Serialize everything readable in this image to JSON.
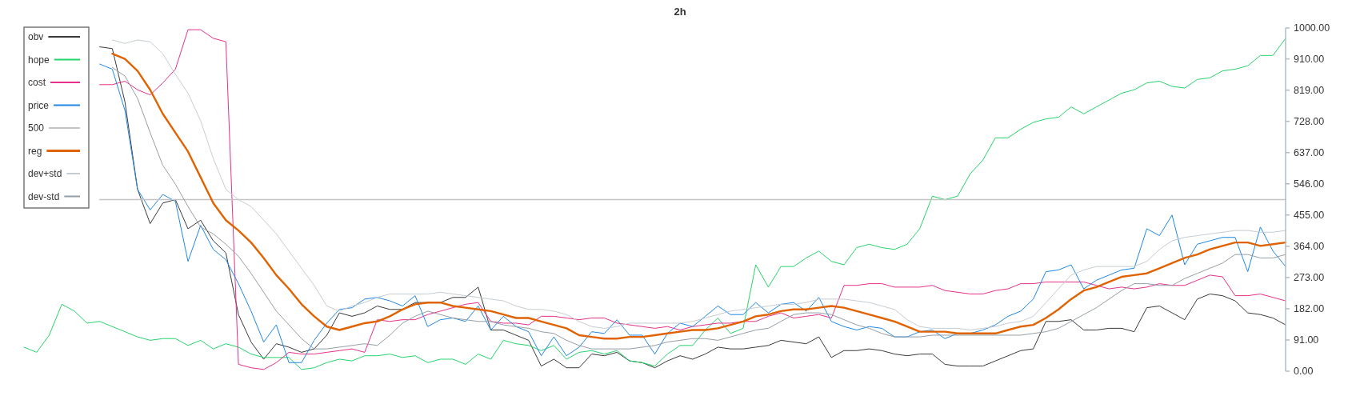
{
  "chart_data": {
    "type": "line",
    "title": "2h",
    "categories": [
      null,
      null,
      null,
      null,
      null,
      null,
      null,
      null,
      null,
      null,
      null,
      null,
      null,
      null,
      null,
      null,
      null,
      null,
      null,
      null,
      null,
      null,
      null,
      null,
      null,
      null,
      null,
      null,
      null,
      null,
      null,
      null,
      null,
      null,
      null,
      null,
      null,
      null,
      null,
      null,
      null,
      null,
      null,
      null,
      null,
      null,
      null,
      null,
      null,
      null,
      null,
      null,
      null,
      null,
      null,
      null,
      null,
      null,
      null,
      null,
      null,
      null,
      null,
      null,
      null,
      null,
      null,
      null,
      null,
      null,
      null,
      null,
      null,
      null,
      null,
      null,
      null,
      null,
      null,
      null,
      null,
      null,
      null,
      null,
      null,
      null,
      null,
      null,
      null,
      null,
      null,
      null,
      null,
      null,
      null,
      null,
      null,
      null,
      null,
      null,
      null
    ],
    "ylim": [
      0,
      1000
    ],
    "yticks": [
      {
        "value": 0,
        "label": "0.00"
      },
      {
        "value": 91,
        "label": "91.00"
      },
      {
        "value": 182,
        "label": "182.00"
      },
      {
        "value": 273,
        "label": "273.00"
      },
      {
        "value": 364,
        "label": "364.00"
      },
      {
        "value": 455,
        "label": "455.00"
      },
      {
        "value": 546,
        "label": "546.00"
      },
      {
        "value": 637,
        "label": "637.00"
      },
      {
        "value": 728,
        "label": "728.00"
      },
      {
        "value": 819,
        "label": "819.00"
      },
      {
        "value": 910,
        "label": "910.00"
      },
      {
        "value": 1000,
        "label": "1000.00"
      }
    ],
    "tick_labels": "y",
    "legend": "top left",
    "series": [
      {
        "name": "obv",
        "color": "#3a3a3a",
        "values": [
          null,
          null,
          null,
          null,
          null,
          null,
          945,
          940,
          785,
          530,
          430,
          490,
          500,
          415,
          440,
          380,
          345,
          165,
          85,
          35,
          80,
          70,
          55,
          65,
          105,
          170,
          160,
          170,
          190,
          180,
          180,
          200,
          200,
          200,
          215,
          215,
          245,
          120,
          120,
          105,
          90,
          15,
          35,
          10,
          10,
          50,
          45,
          55,
          30,
          25,
          10,
          30,
          45,
          35,
          50,
          70,
          65,
          65,
          70,
          75,
          90,
          85,
          80,
          100,
          40,
          60,
          60,
          65,
          60,
          50,
          45,
          50,
          50,
          20,
          15,
          15,
          15,
          30,
          45,
          60,
          65,
          145,
          145,
          150,
          120,
          120,
          125,
          125,
          115,
          185,
          190,
          170,
          150,
          210,
          225,
          220,
          205,
          170,
          165,
          155,
          135
        ]
      },
      {
        "name": "hope",
        "color": "#25d46a",
        "values": [
          70,
          55,
          105,
          195,
          175,
          140,
          145,
          130,
          115,
          100,
          90,
          95,
          95,
          75,
          90,
          65,
          80,
          70,
          50,
          40,
          40,
          40,
          5,
          10,
          25,
          35,
          30,
          45,
          45,
          50,
          40,
          45,
          25,
          35,
          35,
          20,
          50,
          35,
          90,
          80,
          75,
          60,
          75,
          35,
          55,
          60,
          50,
          60,
          30,
          25,
          15,
          50,
          75,
          75,
          120,
          155,
          110,
          125,
          310,
          245,
          305,
          305,
          330,
          350,
          320,
          310,
          360,
          370,
          360,
          355,
          370,
          415,
          510,
          500,
          510,
          575,
          615,
          680,
          680,
          705,
          725,
          735,
          740,
          770,
          750,
          770,
          790,
          810,
          820,
          840,
          845,
          830,
          825,
          850,
          855,
          875,
          880,
          890,
          920,
          920,
          970
        ]
      },
      {
        "name": "cost",
        "color": "#e6308a",
        "values": [
          null,
          null,
          null,
          null,
          null,
          null,
          835,
          835,
          845,
          820,
          805,
          840,
          880,
          995,
          995,
          970,
          960,
          20,
          10,
          5,
          25,
          55,
          50,
          50,
          55,
          60,
          65,
          55,
          150,
          145,
          150,
          150,
          165,
          175,
          185,
          195,
          200,
          145,
          140,
          140,
          135,
          160,
          160,
          155,
          150,
          155,
          155,
          140,
          135,
          130,
          125,
          130,
          120,
          130,
          135,
          140,
          140,
          145,
          145,
          160,
          170,
          155,
          160,
          165,
          155,
          250,
          250,
          255,
          255,
          245,
          245,
          245,
          250,
          235,
          230,
          225,
          225,
          235,
          240,
          255,
          255,
          260,
          260,
          260,
          260,
          250,
          240,
          245,
          240,
          245,
          255,
          250,
          250,
          265,
          280,
          275,
          220,
          220,
          225,
          215,
          205
        ]
      },
      {
        "name": "price",
        "color": "#1f88e5",
        "values": [
          null,
          null,
          null,
          null,
          null,
          null,
          895,
          880,
          760,
          530,
          470,
          515,
          495,
          320,
          425,
          355,
          325,
          255,
          175,
          85,
          135,
          25,
          25,
          90,
          140,
          180,
          185,
          210,
          215,
          205,
          190,
          220,
          130,
          150,
          155,
          145,
          190,
          120,
          160,
          130,
          115,
          45,
          100,
          45,
          70,
          115,
          110,
          150,
          105,
          105,
          50,
          110,
          140,
          130,
          160,
          190,
          165,
          165,
          200,
          170,
          195,
          200,
          175,
          215,
          145,
          130,
          120,
          130,
          125,
          100,
          100,
          115,
          120,
          95,
          110,
          110,
          120,
          135,
          160,
          175,
          210,
          290,
          295,
          310,
          240,
          265,
          280,
          295,
          300,
          415,
          395,
          455,
          310,
          370,
          380,
          390,
          390,
          290,
          420,
          350,
          305
        ]
      },
      {
        "name": "500",
        "color": "#c4c4c4",
        "values": [
          null,
          null,
          null,
          null,
          null,
          null,
          500,
          500,
          500,
          500,
          500,
          500,
          500,
          500,
          500,
          500,
          500,
          500,
          500,
          500,
          500,
          500,
          500,
          500,
          500,
          500,
          500,
          500,
          500,
          500,
          500,
          500,
          500,
          500,
          500,
          500,
          500,
          500,
          500,
          500,
          500,
          500,
          500,
          500,
          500,
          500,
          500,
          500,
          500,
          500,
          500,
          500,
          500,
          500,
          500,
          500,
          500,
          500,
          500,
          500,
          500,
          500,
          500,
          500,
          500,
          500,
          500,
          500,
          500,
          500,
          500,
          500,
          500,
          500,
          500,
          500,
          500,
          500,
          500,
          500,
          500,
          500,
          500,
          500,
          500,
          500,
          500,
          500,
          500,
          500,
          500,
          500,
          500,
          500,
          500,
          500,
          500,
          500,
          500,
          500,
          500
        ]
      },
      {
        "name": "reg",
        "color": "#e06200",
        "values": [
          null,
          null,
          null,
          null,
          null,
          null,
          null,
          925,
          910,
          875,
          820,
          750,
          695,
          640,
          565,
          490,
          440,
          410,
          375,
          330,
          280,
          240,
          195,
          160,
          130,
          120,
          130,
          140,
          145,
          160,
          180,
          195,
          200,
          200,
          190,
          185,
          180,
          175,
          165,
          155,
          155,
          145,
          135,
          125,
          105,
          100,
          95,
          95,
          100,
          100,
          105,
          110,
          115,
          120,
          120,
          125,
          135,
          145,
          160,
          165,
          175,
          180,
          180,
          185,
          190,
          185,
          175,
          165,
          155,
          145,
          130,
          115,
          115,
          115,
          110,
          110,
          110,
          110,
          120,
          130,
          135,
          155,
          180,
          210,
          235,
          245,
          260,
          275,
          280,
          285,
          300,
          315,
          330,
          340,
          355,
          365,
          375,
          375,
          365,
          370,
          375
        ]
      },
      {
        "name": "dev+std",
        "color": "#c5ccd2",
        "values": [
          null,
          null,
          null,
          null,
          null,
          null,
          null,
          965,
          955,
          965,
          960,
          925,
          865,
          810,
          730,
          620,
          530,
          500,
          480,
          440,
          400,
          350,
          300,
          250,
          190,
          175,
          190,
          200,
          215,
          225,
          225,
          225,
          225,
          230,
          225,
          220,
          215,
          210,
          205,
          190,
          180,
          180,
          175,
          165,
          145,
          130,
          125,
          130,
          140,
          140,
          140,
          140,
          140,
          145,
          155,
          165,
          175,
          180,
          185,
          190,
          195,
          195,
          200,
          210,
          210,
          210,
          205,
          200,
          190,
          180,
          150,
          130,
          125,
          125,
          125,
          120,
          125,
          130,
          140,
          145,
          160,
          200,
          240,
          280,
          295,
          305,
          305,
          305,
          305,
          320,
          355,
          380,
          390,
          395,
          400,
          405,
          410,
          410,
          405,
          405,
          410
        ]
      },
      {
        "name": "dev-std",
        "color": "#949ea6",
        "values": [
          null,
          null,
          null,
          null,
          null,
          null,
          null,
          885,
          860,
          795,
          695,
          600,
          545,
          480,
          420,
          400,
          370,
          335,
          285,
          230,
          175,
          135,
          95,
          65,
          65,
          70,
          75,
          80,
          75,
          105,
          140,
          160,
          175,
          165,
          155,
          150,
          145,
          145,
          135,
          130,
          125,
          115,
          110,
          90,
          75,
          65,
          65,
          65,
          65,
          70,
          75,
          85,
          90,
          95,
          95,
          90,
          100,
          110,
          120,
          125,
          145,
          165,
          170,
          170,
          165,
          150,
          135,
          125,
          110,
          100,
          100,
          100,
          105,
          105,
          105,
          105,
          105,
          105,
          105,
          105,
          110,
          115,
          125,
          145,
          165,
          185,
          210,
          235,
          255,
          255,
          250,
          250,
          270,
          285,
          300,
          315,
          340,
          340,
          330,
          330,
          340
        ]
      }
    ]
  }
}
